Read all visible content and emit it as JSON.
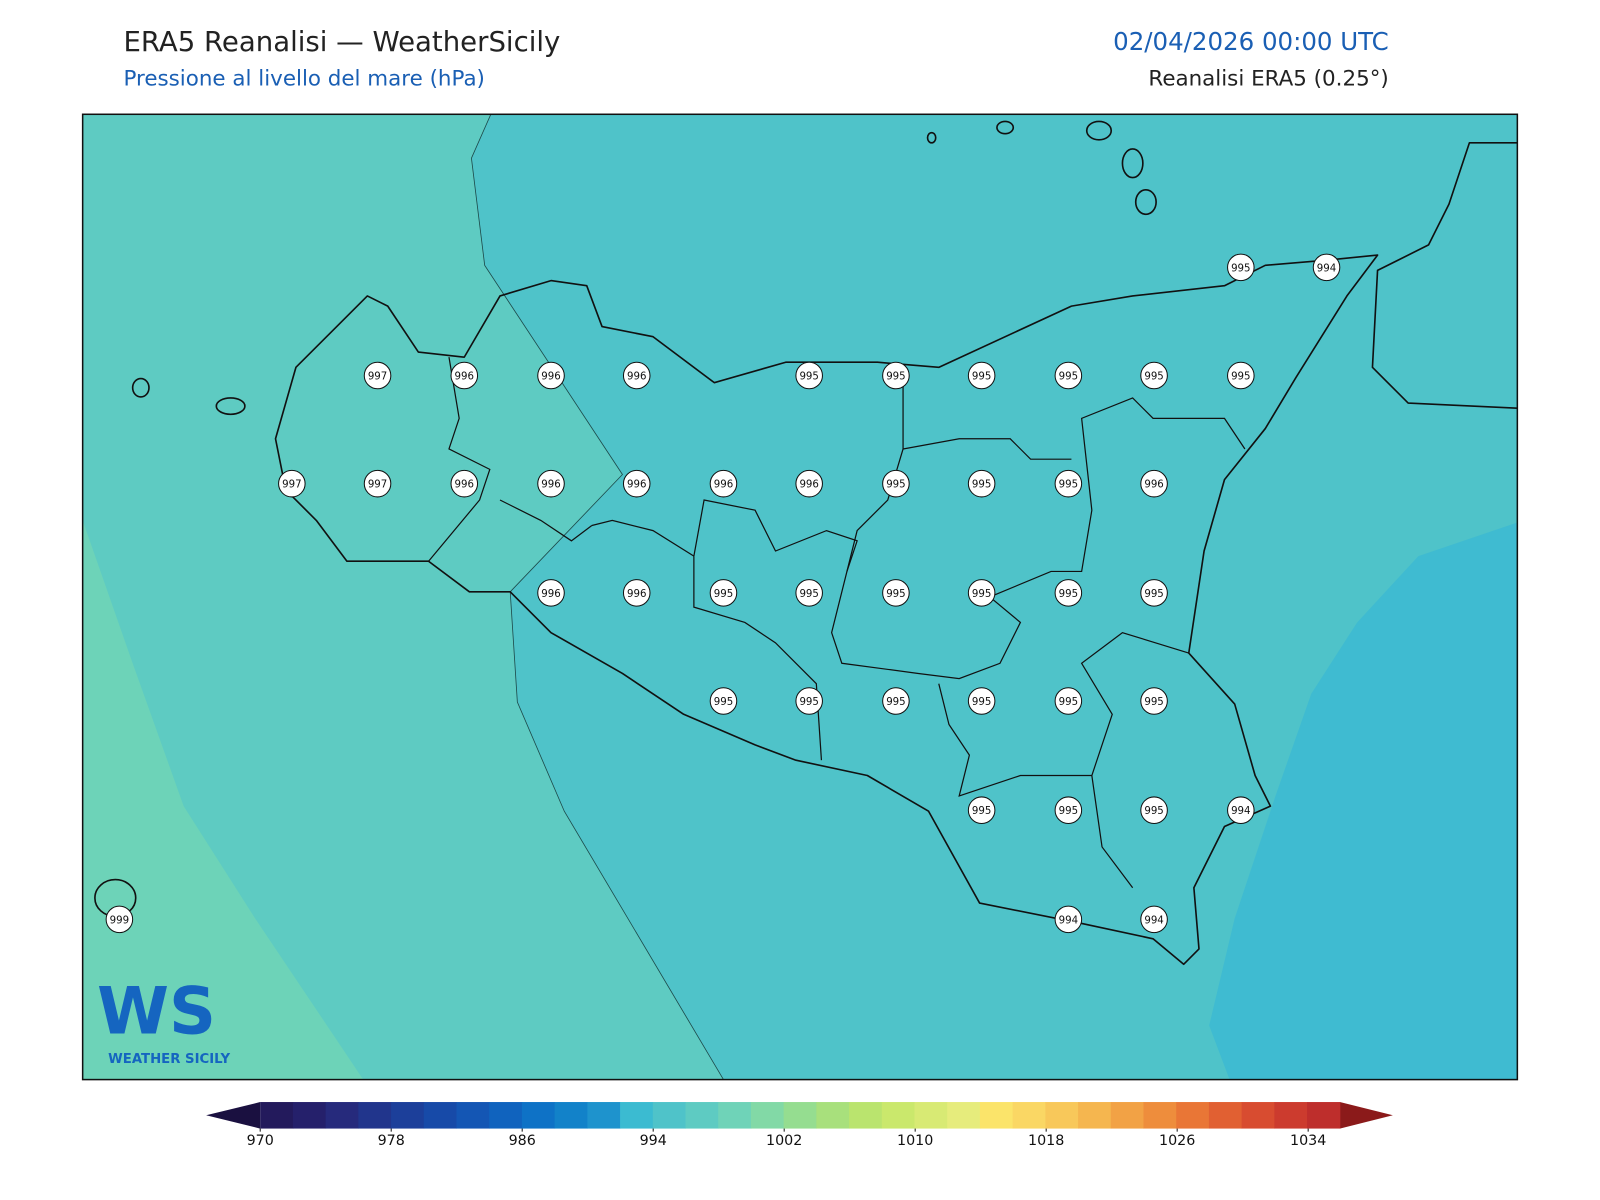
{
  "header": {
    "title": "ERA5 Reanalisi — WeatherSicily",
    "subtitle": "Pressione al livello del mare (hPa)",
    "datetime": "02/04/2026 00:00 UTC",
    "source": "Reanalisi ERA5 (0.25°)"
  },
  "map": {
    "pressure_labels": [
      995,
      994,
      997,
      996,
      996,
      996,
      995,
      995,
      995,
      995,
      995,
      995,
      997,
      997,
      996,
      996,
      996,
      996,
      996,
      995,
      995,
      995,
      996,
      996,
      996,
      995,
      995,
      995,
      995,
      995,
      995,
      995,
      995,
      995,
      995,
      995,
      995,
      995,
      995,
      995,
      994,
      999,
      994,
      994
    ]
  },
  "colorbar": {
    "ticks": [
      970,
      978,
      986,
      994,
      1002,
      1010,
      1018,
      1026,
      1034
    ],
    "colors": [
      "#231a5c",
      "#25206b",
      "#262a7c",
      "#21358c",
      "#1c3f9a",
      "#174aa8",
      "#1456b4",
      "#1063be",
      "#0e72c6",
      "#1282c9",
      "#1e93cd",
      "#3bbbd1",
      "#4fc3c9",
      "#5ecbc2",
      "#6fd3b8",
      "#82d9a6",
      "#95dd90",
      "#a8e07c",
      "#bae46e",
      "#cae86c",
      "#d8ea74",
      "#e6ec7c",
      "#fbe46a",
      "#fad764",
      "#f8c85a",
      "#f5b64f",
      "#f2a245",
      "#ee8d3c",
      "#e97636",
      "#e16032",
      "#d84c30",
      "#cc3b2e",
      "#be2e2c"
    ],
    "under_color": "#1a1040",
    "over_color": "#8b1a1a"
  },
  "logo": {
    "mark": "WS",
    "text": "WEATHER SICILY"
  }
}
